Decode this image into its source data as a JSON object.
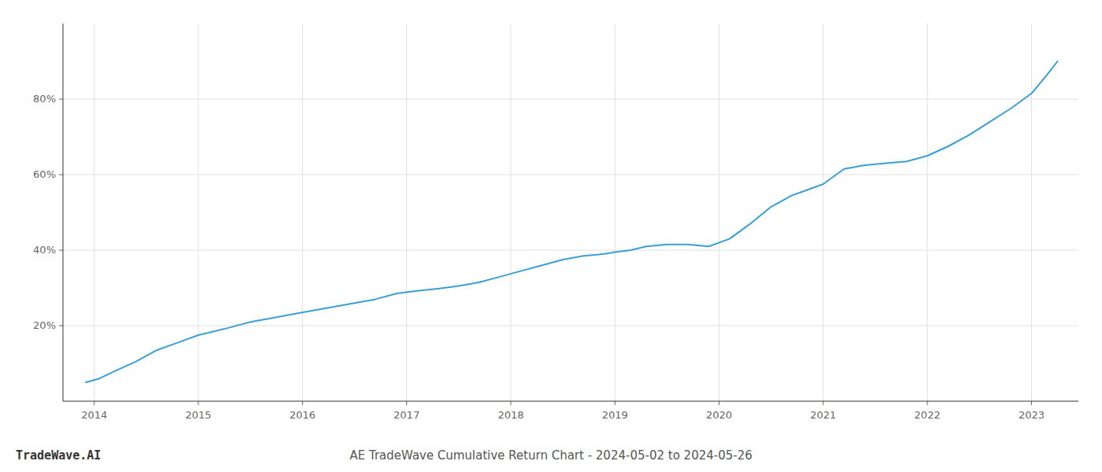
{
  "chart_data": {
    "type": "line",
    "title": "AE TradeWave Cumulative Return Chart - 2024-05-02 to 2024-05-26",
    "annotations": [
      "TradeWave.AI"
    ],
    "x": [
      2013.92,
      2014.05,
      2014.2,
      2014.4,
      2014.6,
      2014.8,
      2015.0,
      2015.15,
      2015.3,
      2015.5,
      2015.7,
      2015.9,
      2016.1,
      2016.3,
      2016.5,
      2016.7,
      2016.9,
      2017.1,
      2017.3,
      2017.5,
      2017.7,
      2017.9,
      2018.1,
      2018.3,
      2018.5,
      2018.7,
      2018.9,
      2019.0,
      2019.15,
      2019.3,
      2019.5,
      2019.7,
      2019.9,
      2020.1,
      2020.3,
      2020.5,
      2020.7,
      2021.0,
      2021.2,
      2021.4,
      2021.6,
      2021.8,
      2022.0,
      2022.2,
      2022.4,
      2022.6,
      2022.8,
      2023.0,
      2023.15,
      2023.25
    ],
    "values": [
      5.0,
      6.0,
      8.0,
      10.5,
      13.5,
      15.5,
      17.5,
      18.5,
      19.5,
      21.0,
      22.0,
      23.0,
      24.0,
      25.0,
      26.0,
      27.0,
      28.5,
      29.2,
      29.8,
      30.5,
      31.5,
      33.0,
      34.5,
      36.0,
      37.5,
      38.5,
      39.0,
      39.5,
      40.0,
      41.0,
      41.5,
      41.5,
      41.0,
      43.0,
      47.0,
      51.5,
      54.5,
      57.5,
      61.5,
      62.5,
      63.0,
      63.5,
      65.0,
      67.5,
      70.5,
      74.0,
      77.5,
      81.5,
      86.5,
      90.0
    ],
    "color": "#3a9fd4",
    "xlim": [
      2013.7,
      2023.45
    ],
    "ylim": [
      0,
      100
    ],
    "xticks": [
      2014,
      2015,
      2016,
      2017,
      2018,
      2019,
      2020,
      2021,
      2022,
      2023
    ],
    "yticks": [
      {
        "value": 20,
        "label": "20%"
      },
      {
        "value": 40,
        "label": "40%"
      },
      {
        "value": 60,
        "label": "60%"
      },
      {
        "value": 80,
        "label": "80%"
      }
    ],
    "grid": true
  }
}
